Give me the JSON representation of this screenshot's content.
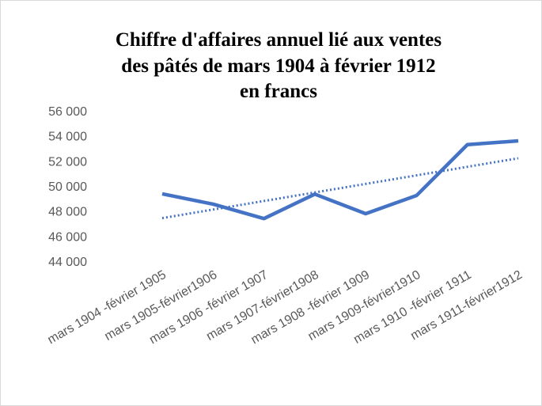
{
  "chart_data": {
    "type": "line",
    "title": [
      "Chiffre d'affaires annuel lié aux ventes",
      "des pâtés de mars 1904 à février 1912",
      "en francs"
    ],
    "categories": [
      "mars 1904 -février 1905",
      "mars 1905-février1906",
      "mars 1906 -février 1907",
      "mars 1907-février1908",
      "mars 1908 -février 1909",
      "mars 1909-février1910",
      "mars 1910 -février 1911",
      "mars 1911-février1912"
    ],
    "values": [
      49370,
      48550,
      47400,
      49350,
      47790,
      49240,
      53300,
      53600
    ],
    "color": "#4472c4",
    "trendline": true,
    "ylim": [
      44000,
      56000
    ],
    "yticks": [
      {
        "value": 44000,
        "label": "44 000"
      },
      {
        "value": 46000,
        "label": "46 000"
      },
      {
        "value": 48000,
        "label": "48 000"
      },
      {
        "value": 50000,
        "label": "50 000"
      },
      {
        "value": 52000,
        "label": "52 000"
      },
      {
        "value": 54000,
        "label": "54 000"
      },
      {
        "value": 56000,
        "label": "56 000"
      }
    ],
    "grid": false
  }
}
